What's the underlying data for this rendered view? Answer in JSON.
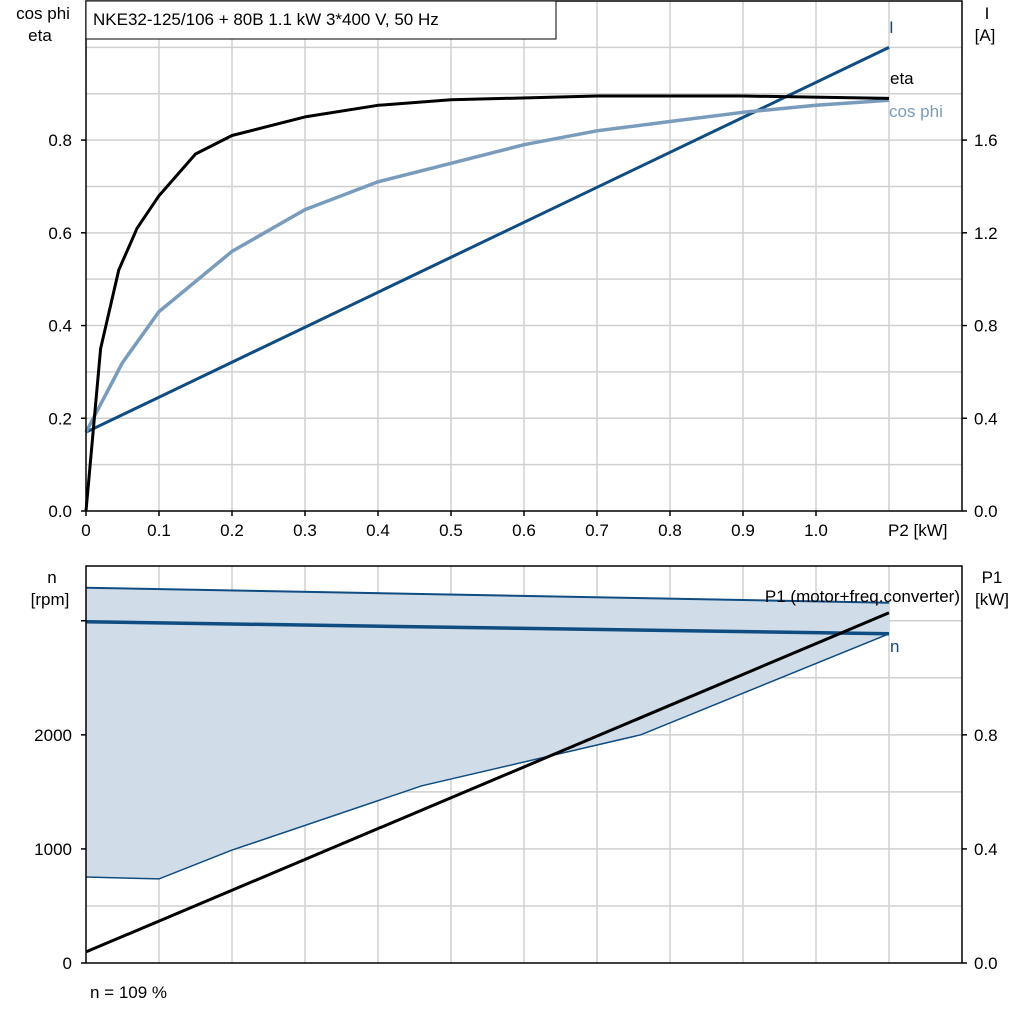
{
  "title": "NKE32-125/106 + 80B   1.1 kW   3*400 V, 50 Hz",
  "footer": "n = 109 %",
  "colors": {
    "I": "#0f4c81",
    "eta": "#000000",
    "cos_phi": "#7a9cbc",
    "n": "#0f4c81",
    "n_range_fill": "#d0dce8",
    "P1": "#000000"
  },
  "chart_data": [
    {
      "type": "line",
      "xlabel": "P2 [kW]",
      "ylabel_left": [
        "cos phi",
        "eta"
      ],
      "ylabel_right": [
        "I",
        "[A]"
      ],
      "xlim": [
        0,
        1.2
      ],
      "ylim_left": [
        0,
        1.1
      ],
      "ylim_right": [
        0,
        2.2
      ],
      "xticks": [
        "0",
        "0.1",
        "0.2",
        "0.3",
        "0.4",
        "0.5",
        "0.6",
        "0.7",
        "0.8",
        "0.9",
        "1.0"
      ],
      "yticks_left": [
        "0.0",
        "0.2",
        "0.4",
        "0.6",
        "0.8"
      ],
      "yticks_right": [
        "0.0",
        "0.4",
        "0.8",
        "1.2",
        "1.6"
      ],
      "grid": true,
      "series": [
        {
          "name": "I",
          "axis": "right",
          "color": "#0f4c81",
          "x": [
            0,
            1.1
          ],
          "y": [
            0.34,
            2.0
          ]
        },
        {
          "name": "eta",
          "axis": "left",
          "color": "#000000",
          "x": [
            0,
            0.02,
            0.045,
            0.07,
            0.1,
            0.15,
            0.2,
            0.3,
            0.4,
            0.5,
            0.7,
            0.9,
            1.1
          ],
          "y": [
            0,
            0.35,
            0.52,
            0.61,
            0.68,
            0.77,
            0.81,
            0.85,
            0.875,
            0.887,
            0.895,
            0.895,
            0.89
          ]
        },
        {
          "name": "cos phi",
          "axis": "left",
          "color": "#7a9cbc",
          "x": [
            0,
            0.05,
            0.1,
            0.2,
            0.3,
            0.4,
            0.5,
            0.6,
            0.7,
            0.8,
            0.9,
            1.0,
            1.1
          ],
          "y": [
            0.17,
            0.32,
            0.43,
            0.56,
            0.65,
            0.71,
            0.75,
            0.79,
            0.82,
            0.84,
            0.86,
            0.875,
            0.886
          ]
        }
      ]
    },
    {
      "type": "line",
      "ylabel_left": [
        "n",
        "[rpm]"
      ],
      "ylabel_right": [
        "P1",
        "[kW]"
      ],
      "xlim": [
        0,
        1.2
      ],
      "ylim_left": [
        0,
        3480
      ],
      "ylim_right": [
        0,
        1.392
      ],
      "yticks_left": [
        "0",
        "1000",
        "2000"
      ],
      "yticks_right": [
        "0.0",
        "0.4",
        "0.8"
      ],
      "grid": true,
      "series": [
        {
          "name": "n",
          "axis": "left",
          "color": "#0f4c81",
          "x": [
            0,
            1.1
          ],
          "y": [
            2991,
            2886
          ]
        },
        {
          "name": "n range upper",
          "axis": "left",
          "x": [
            0,
            1.1
          ],
          "y": [
            3290,
            3158
          ]
        },
        {
          "name": "n range lower",
          "axis": "left",
          "x": [
            0,
            0.1,
            0.2,
            0.46,
            0.76,
            1.1
          ],
          "y": [
            754,
            737,
            990,
            1553,
            2000,
            2886
          ]
        },
        {
          "name": "P1 (motor+freq.converter)",
          "axis": "right",
          "color": "#000000",
          "x": [
            0,
            1.1
          ],
          "y": [
            0.039,
            1.228
          ]
        }
      ]
    }
  ]
}
